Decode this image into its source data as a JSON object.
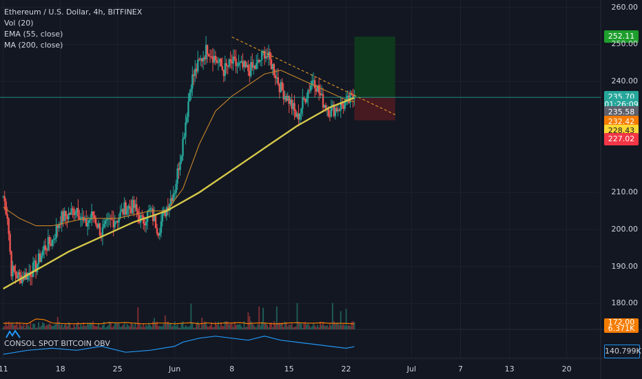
{
  "legend": {
    "title": "Ethereum / U.S. Dollar, 4h, BITFINEX",
    "vol": "Vol (20)",
    "ema": "EMA (55, close)",
    "ma": "MA (200, close)"
  },
  "obv": {
    "label": "CONSOL SPOT BITCOIN OBV",
    "value": "140.799K"
  },
  "price_tags": [
    {
      "label": "252.11",
      "price": 252.11,
      "bg": "#1e9e2c",
      "fg": "#ffffff"
    },
    {
      "label": "235.70",
      "price": 235.7,
      "bg": "#26a69a",
      "fg": "#ffffff"
    },
    {
      "label": "01:26:09",
      "price": 233.7,
      "bg": "#26a69a",
      "fg": "#ffffff"
    },
    {
      "label": "235.58",
      "price": 231.7,
      "bg": "#5d606b",
      "fg": "#ffffff"
    },
    {
      "label": "232.42",
      "price": 229.1,
      "bg": "#f57c00",
      "fg": "#ffffff"
    },
    {
      "label": "228.43",
      "price": 226.7,
      "bg": "#fdd835",
      "fg": "#131722"
    },
    {
      "label": "227.02",
      "price": 224.3,
      "bg": "#f23645",
      "fg": "#ffffff"
    }
  ],
  "volume_tags": [
    {
      "label": "172.00",
      "bg": "#f57c00",
      "fg": "#ffffff"
    },
    {
      "label": "6.371K",
      "bg": "#f57c00",
      "fg": "#ffffff"
    }
  ],
  "chart_data": {
    "type": "line",
    "title": "Ethereum / U.S. Dollar, 4h, BITFINEX",
    "ylim": [
      173,
      262
    ],
    "y_ticks": [
      180,
      190,
      200,
      210,
      240,
      250,
      260
    ],
    "y_tick_labels": [
      "180.00",
      "190.00",
      "200.00",
      "210.00",
      "240.00",
      "250.00",
      "260.00"
    ],
    "x_ticks": [
      "11",
      "18",
      "25",
      "Jun",
      "8",
      "15",
      "22",
      "Jul",
      "7",
      "13",
      "20"
    ],
    "x_tick_days": [
      0,
      7,
      14,
      21,
      28,
      35,
      42,
      50,
      56,
      62,
      69
    ],
    "x_range_days": [
      -0.4,
      73
    ],
    "last_price": 235.7,
    "price_close": [
      [
        0,
        209
      ],
      [
        0.5,
        204
      ],
      [
        1,
        189
      ],
      [
        2,
        187
      ],
      [
        3,
        188
      ],
      [
        4,
        190
      ],
      [
        5,
        195
      ],
      [
        6,
        197
      ],
      [
        7,
        203
      ],
      [
        8,
        204
      ],
      [
        9,
        206
      ],
      [
        10,
        201
      ],
      [
        11,
        204
      ],
      [
        12,
        199
      ],
      [
        13,
        202
      ],
      [
        14,
        203
      ],
      [
        15,
        206
      ],
      [
        16,
        206
      ],
      [
        17,
        202
      ],
      [
        18,
        205
      ],
      [
        19,
        200
      ],
      [
        20,
        206
      ],
      [
        21,
        211
      ],
      [
        22,
        224
      ],
      [
        23,
        240
      ],
      [
        24,
        245
      ],
      [
        25,
        249
      ],
      [
        26,
        246
      ],
      [
        27,
        243
      ],
      [
        28,
        245
      ],
      [
        29,
        244
      ],
      [
        30,
        243
      ],
      [
        31,
        244
      ],
      [
        32,
        248
      ],
      [
        33,
        244
      ],
      [
        34,
        238
      ],
      [
        35,
        235
      ],
      [
        36,
        230
      ],
      [
        37,
        236
      ],
      [
        38,
        241
      ],
      [
        39,
        235
      ],
      [
        40,
        232
      ],
      [
        41,
        233
      ],
      [
        42,
        234
      ],
      [
        43,
        236
      ]
    ],
    "series": [
      {
        "name": "EMA (55, close)",
        "color": "#c8862a",
        "values": [
          [
            0,
            206
          ],
          [
            2,
            203
          ],
          [
            4,
            201
          ],
          [
            6,
            201
          ],
          [
            8,
            202
          ],
          [
            10,
            203
          ],
          [
            12,
            203
          ],
          [
            14,
            203
          ],
          [
            16,
            204
          ],
          [
            18,
            205
          ],
          [
            20,
            205
          ],
          [
            22,
            211
          ],
          [
            24,
            223
          ],
          [
            26,
            232
          ],
          [
            28,
            236
          ],
          [
            30,
            239
          ],
          [
            32,
            242
          ],
          [
            34,
            243
          ],
          [
            36,
            241
          ],
          [
            38,
            239
          ],
          [
            40,
            237
          ],
          [
            42,
            235
          ],
          [
            43,
            234.5
          ]
        ]
      },
      {
        "name": "MA (200, close)",
        "color": "#d6c94a",
        "values": [
          [
            0,
            184
          ],
          [
            4,
            189
          ],
          [
            8,
            194
          ],
          [
            12,
            198
          ],
          [
            16,
            202
          ],
          [
            20,
            205
          ],
          [
            24,
            210
          ],
          [
            28,
            216
          ],
          [
            32,
            222
          ],
          [
            36,
            228
          ],
          [
            40,
            233
          ],
          [
            43,
            235.6
          ]
        ]
      }
    ],
    "trendline": {
      "x": [
        28,
        48
      ],
      "y": [
        252,
        231
      ]
    },
    "position": {
      "x": [
        43,
        48
      ],
      "entry": 235.7,
      "target": 252.11,
      "stop": 229.5
    },
    "obv": [
      [
        0,
        137
      ],
      [
        3,
        139
      ],
      [
        6,
        140
      ],
      [
        9,
        139
      ],
      [
        12,
        141
      ],
      [
        15,
        138
      ],
      [
        18,
        139
      ],
      [
        21,
        141
      ],
      [
        22,
        143
      ],
      [
        24,
        145
      ],
      [
        26,
        146
      ],
      [
        28,
        145
      ],
      [
        30,
        144
      ],
      [
        32,
        146
      ],
      [
        34,
        144
      ],
      [
        36,
        143
      ],
      [
        38,
        142
      ],
      [
        40,
        141
      ],
      [
        42,
        140
      ],
      [
        43,
        140.8
      ]
    ]
  }
}
